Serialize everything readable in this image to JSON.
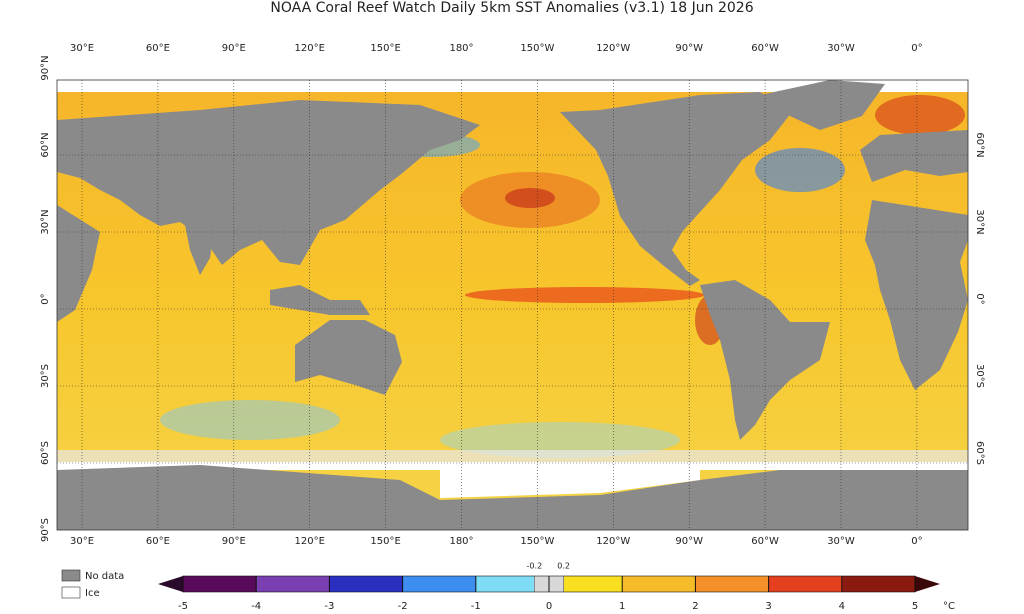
{
  "header": {
    "title": "NOAA Coral Reef Watch Daily 5km SST Anomalies  (v3.1)   18 Jun 2026"
  },
  "map": {
    "lon_labels": [
      "30°E",
      "60°E",
      "90°E",
      "120°E",
      "150°E",
      "180°",
      "150°W",
      "120°W",
      "90°W",
      "60°W",
      "30°W",
      "0°"
    ],
    "lat_labels_left": [
      "90°N",
      "60°N",
      "30°N",
      "0°",
      "30°S",
      "60°S",
      "90°S"
    ],
    "lat_labels_right": [
      "60°N",
      "30°N",
      "0°",
      "30°S",
      "60°S"
    ]
  },
  "legend": {
    "items": [
      "No data",
      "Ice"
    ]
  },
  "colorbar": {
    "range": [
      -5,
      5
    ],
    "ticks": [
      -5,
      -4,
      -3,
      -2,
      -1,
      0,
      1,
      2,
      3,
      4,
      5
    ],
    "minor_ticks": [
      -0.2,
      0.2
    ],
    "unit": "°C",
    "colors": [
      "#5a0a5a",
      "#7a3fb0",
      "#2a2fc0",
      "#3d8ef0",
      "#7fdcf5",
      "#f8e020",
      "#f6bb28",
      "#f3902a",
      "#e4401f",
      "#8b1a10"
    ],
    "neutral_color": "#d8d8d8"
  }
}
